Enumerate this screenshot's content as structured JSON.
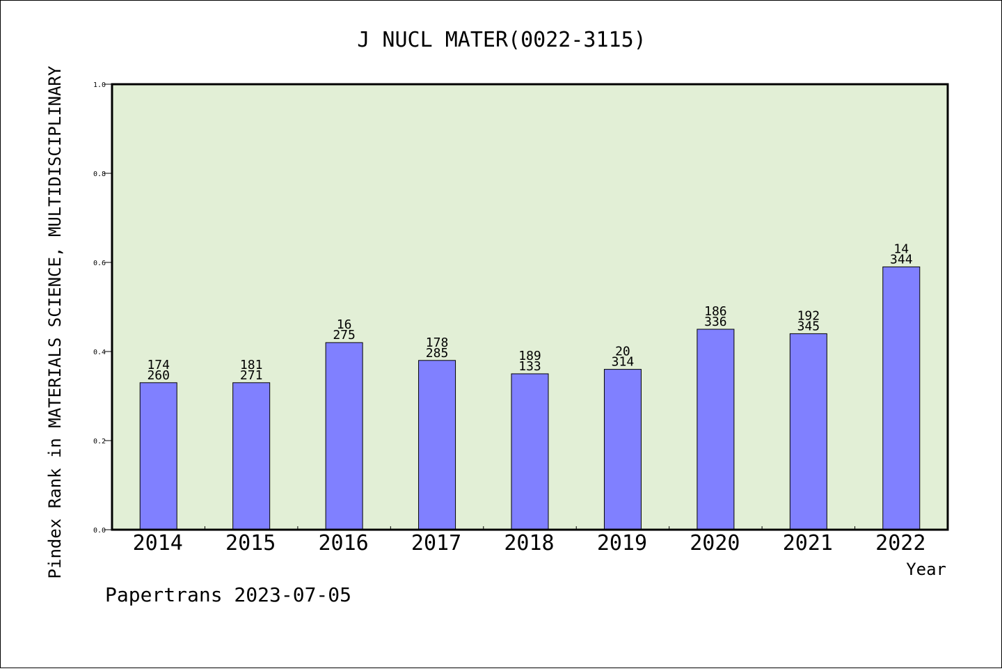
{
  "chart_data": {
    "type": "bar",
    "title": "J NUCL MATER(0022-3115)",
    "xlabel": "Year",
    "ylabel": "Pindex Rank in MATERIALS SCIENCE, MULTIDISCIPLINARY",
    "ylim": [
      0,
      1.0
    ],
    "yticks": [
      "0.0",
      "0.2",
      "0.4",
      "0.6",
      "0.8",
      "1.0"
    ],
    "grid": false,
    "categories": [
      "2014",
      "2015",
      "2016",
      "2017",
      "2018",
      "2019",
      "2020",
      "2021",
      "2022"
    ],
    "values": [
      0.33,
      0.33,
      0.42,
      0.38,
      0.35,
      0.36,
      0.45,
      0.44,
      0.59
    ],
    "annotations_top": [
      "174",
      "181",
      "16",
      "178",
      "189",
      "20",
      "186",
      "192",
      "14"
    ],
    "annotations_bottom": [
      "260",
      "271",
      "275",
      "285",
      "133",
      "314",
      "336",
      "345",
      "344"
    ],
    "colors": {
      "plot_background": "#e2efd6",
      "bar_fill": "#8080ff",
      "bar_stroke": "#000000"
    }
  },
  "footer": "Papertrans 2023-07-05"
}
